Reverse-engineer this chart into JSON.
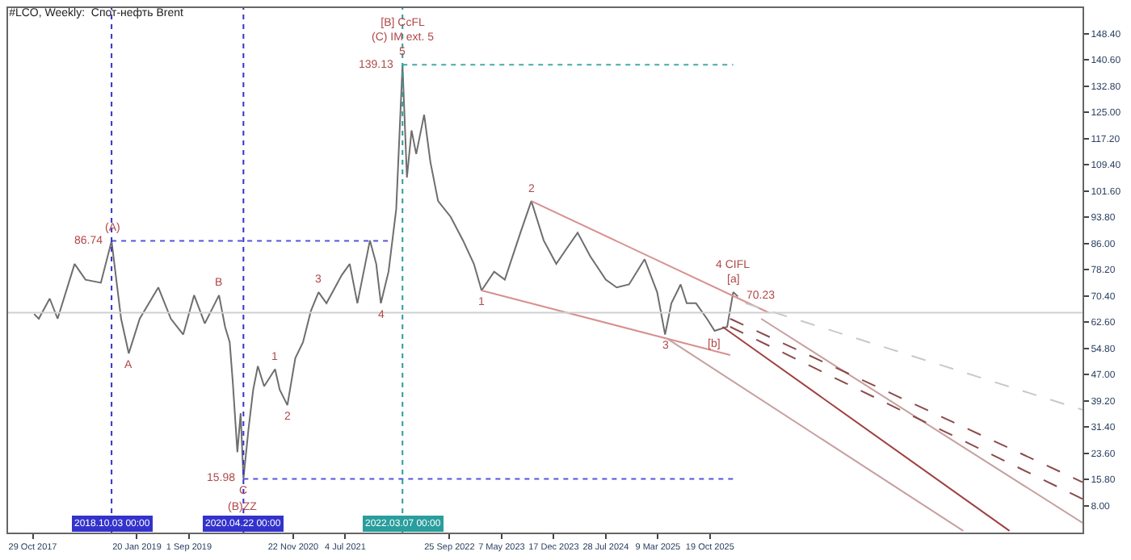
{
  "chart_data": {
    "type": "line",
    "title": "#LCO, Weekly:  Спот-нефть Brent",
    "xlim": [
      "2017-07-15",
      "2030-03-09"
    ],
    "ylim": [
      0,
      156
    ],
    "xticks": [
      {
        "value": "2017-10-29",
        "label": "29 Oct 2017"
      },
      {
        "value": "2019-01-20",
        "label": "20 Jan 2019"
      },
      {
        "value": "2019-09-01",
        "label": "1 Sep 2019"
      },
      {
        "value": "2020-11-22",
        "label": "22 Nov 2020"
      },
      {
        "value": "2021-07-04",
        "label": "4 Jul 2021"
      },
      {
        "value": "2022-09-25",
        "label": "25 Sep 2022"
      },
      {
        "value": "2023-05-07",
        "label": "7 May 2023"
      },
      {
        "value": "2023-12-17",
        "label": "17 Dec 2023"
      },
      {
        "value": "2024-07-28",
        "label": "28 Jul 2024"
      },
      {
        "value": "2025-03-09",
        "label": "9 Mar 2025"
      },
      {
        "value": "2025-10-19",
        "label": "19 Oct 2025"
      }
    ],
    "yticks": [
      {
        "value": 8,
        "label": "8.00"
      },
      {
        "value": 15.8,
        "label": "15.80"
      },
      {
        "value": 23.6,
        "label": "23.60"
      },
      {
        "value": 31.4,
        "label": "31.40"
      },
      {
        "value": 39.2,
        "label": "39.20"
      },
      {
        "value": 47,
        "label": "47.00"
      },
      {
        "value": 54.8,
        "label": "54.80"
      },
      {
        "value": 62.6,
        "label": "62.60"
      },
      {
        "value": 70.4,
        "label": "70.40"
      },
      {
        "value": 78.2,
        "label": "78.20"
      },
      {
        "value": 86,
        "label": "86.00"
      },
      {
        "value": 93.8,
        "label": "93.80"
      },
      {
        "value": 101.6,
        "label": "101.60"
      },
      {
        "value": 109.4,
        "label": "109.40"
      },
      {
        "value": 117.2,
        "label": "117.20"
      },
      {
        "value": 125,
        "label": "125.00"
      },
      {
        "value": 132.8,
        "label": "132.80"
      },
      {
        "value": 140.6,
        "label": "140.60"
      },
      {
        "value": 148.4,
        "label": "148.40"
      }
    ],
    "marker": "none",
    "series": [
      {
        "color": "#6e6e6e",
        "line_style": "solid",
        "x": [
          "2017-11-04",
          "2017-11-24",
          "2018-01-10",
          "2018-02-13",
          "2018-04-27",
          "2018-06-13",
          "2018-08-18",
          "2018-10-03",
          "2018-11-13",
          "2018-12-16",
          "2019-02-01",
          "2019-04-22",
          "2019-06-15",
          "2019-08-07",
          "2019-09-23",
          "2019-11-08",
          "2020-01-08",
          "2020-02-03",
          "2020-02-23",
          "2020-03-07",
          "2020-03-27",
          "2020-04-10",
          "2020-04-22",
          "2020-05-14",
          "2020-06-03",
          "2020-06-23",
          "2020-07-20",
          "2020-09-05",
          "2020-09-25",
          "2020-10-28",
          "2020-12-01",
          "2021-01-03",
          "2021-02-06",
          "2021-03-11",
          "2021-04-14",
          "2021-06-19",
          "2021-07-23",
          "2021-08-25",
          "2021-10-18",
          "2021-11-14",
          "2021-12-04",
          "2022-01-06",
          "2022-02-08",
          "2022-03-07",
          "2022-03-26",
          "2022-04-15",
          "2022-05-05",
          "2022-06-08",
          "2022-07-05",
          "2022-08-07",
          "2022-09-30",
          "2022-11-22",
          "2023-01-08",
          "2023-02-10",
          "2023-04-05",
          "2023-05-21",
          "2023-07-27",
          "2023-09-12",
          "2023-11-04",
          "2023-12-28",
          "2024-02-12",
          "2024-03-29",
          "2024-05-22",
          "2024-07-28",
          "2024-09-13",
          "2024-11-05",
          "2025-01-11",
          "2025-03-06",
          "2025-04-09",
          "2025-05-06",
          "2025-06-15",
          "2025-07-11",
          "2025-08-20",
          "2025-10-06",
          "2025-11-08",
          "2026-01-01",
          "2026-01-27",
          "2026-02-16"
        ],
        "values": [
          65.0,
          63.6,
          69.6,
          63.6,
          79.9,
          75.2,
          74.3,
          86.7,
          63.6,
          53.3,
          63.6,
          72.9,
          63.6,
          58.9,
          70.6,
          62.2,
          70.6,
          61.2,
          56.6,
          44.9,
          23.9,
          35.5,
          16.0,
          30.9,
          42.5,
          49.5,
          43.5,
          48.6,
          42.5,
          37.9,
          51.9,
          56.6,
          65.9,
          71.5,
          68.2,
          76.6,
          79.9,
          68.2,
          86.9,
          79.9,
          68.2,
          77.6,
          96.2,
          139.1,
          105.6,
          119.6,
          112.6,
          124.3,
          110.2,
          98.6,
          93.9,
          86.9,
          79.9,
          72.0,
          77.6,
          75.2,
          89.2,
          98.6,
          86.9,
          79.9,
          84.6,
          89.2,
          82.2,
          75.2,
          72.9,
          73.8,
          81.3,
          71.5,
          58.9,
          68.2,
          73.8,
          68.2,
          68.2,
          63.6,
          60.0,
          61.2,
          71.5,
          70.23
        ]
      },
      {
        "color": "#5555dd",
        "line_style": "dotted",
        "x": [
          "2018-10-03",
          "2022-01-06"
        ],
        "values": [
          86.74,
          86.74
        ]
      },
      {
        "color": "#44aaaa",
        "line_style": "dotted",
        "x": [
          "2022-03-07",
          "2026-01-27"
        ],
        "values": [
          139.13,
          139.13
        ]
      },
      {
        "color": "#5555dd",
        "line_style": "dotted",
        "x": [
          "2020-04-22",
          "2026-01-27"
        ],
        "values": [
          15.98,
          15.98
        ]
      },
      {
        "color": "#d89090",
        "line_style": "solid",
        "x": [
          "2023-09-12",
          "2026-06-29"
        ],
        "values": [
          98.6,
          65.4
        ]
      },
      {
        "color": "#d89090",
        "line_style": "solid",
        "x": [
          "2023-02-10",
          "2026-01-14"
        ],
        "values": [
          72.0,
          52.8
        ]
      },
      {
        "color": "#c8a0a0",
        "line_style": "solid",
        "x": [
          "2026-05-27",
          "2030-03-09"
        ],
        "values": [
          63.6,
          2.9
        ]
      },
      {
        "color": "#c8a0a0",
        "line_style": "solid",
        "x": [
          "2025-04-22",
          "2028-10-12"
        ],
        "values": [
          57.5,
          0.5
        ]
      },
      {
        "color": "#a04040",
        "line_style": "solid",
        "x": [
          "2025-12-12",
          "2029-04-29"
        ],
        "values": [
          61.2,
          0.5
        ]
      },
      {
        "color": "#c8c8c8",
        "line_style": "dashed",
        "x": [
          "2026-03-20",
          "2030-03-09"
        ],
        "values": [
          68.2,
          36.5
        ]
      },
      {
        "color": "#8b4a4a",
        "line_style": "dashed",
        "x": [
          "2026-01-14",
          "2030-03-09"
        ],
        "values": [
          63.6,
          15.0
        ]
      },
      {
        "color": "#8b4a4a",
        "line_style": "dashed",
        "x": [
          "2026-01-14",
          "2030-03-09"
        ],
        "values": [
          61.2,
          10.0
        ]
      }
    ],
    "ref_lines": [
      {
        "axis": "x",
        "value": "2018-10-03",
        "label": "2018.10.03 00:00",
        "color": "#3333cc",
        "line_style": "dotted"
      },
      {
        "axis": "x",
        "value": "2020-04-22",
        "label": "2020.04.22 00:00",
        "color": "#3333cc",
        "line_style": "dotted"
      },
      {
        "axis": "x",
        "value": "2022-03-07",
        "label": "2022.03.07 00:00",
        "color": "#2a9d9d",
        "line_style": "dotted"
      },
      {
        "axis": "y",
        "value": 65.4,
        "color": "#d0d0d0",
        "line_style": "solid"
      }
    ],
    "annotations": [
      {
        "text": "(A)",
        "x": "2018-10-03",
        "y": 86.7
      },
      {
        "text": "A",
        "x": "2018-12-16",
        "y": 53.3
      },
      {
        "text": "B",
        "x": "2020-01-08",
        "y": 70.6
      },
      {
        "text": "C",
        "x": "2020-04-22",
        "y": 16.0
      },
      {
        "text": "(B)ZZ",
        "x": "2020-04-22",
        "y": 16.0
      },
      {
        "text": "1",
        "x": "2020-09-05",
        "y": 48.6
      },
      {
        "text": "2",
        "x": "2020-10-28",
        "y": 37.9
      },
      {
        "text": "3",
        "x": "2021-03-11",
        "y": 71.5
      },
      {
        "text": "4",
        "x": "2021-12-04",
        "y": 68.2
      },
      {
        "text": "5",
        "x": "2022-03-07",
        "y": 139.1
      },
      {
        "text": "[B] CcFL\n(C) IM ext. 5",
        "x": "2022-03-07",
        "y": 139.1
      },
      {
        "text": "1",
        "x": "2023-02-10",
        "y": 72.0
      },
      {
        "text": "2",
        "x": "2023-09-12",
        "y": 98.6
      },
      {
        "text": "3",
        "x": "2025-04-09",
        "y": 58.9
      },
      {
        "text": "[b]",
        "x": "2025-11-08",
        "y": 60.0
      },
      {
        "text": "[a]",
        "x": "2026-01-27",
        "y": 71.5
      },
      {
        "text": "4 CIFL",
        "x": "2026-01-27",
        "y": 71.5
      },
      {
        "text": "70.23",
        "x": "2026-02-16",
        "y": 70.23
      },
      {
        "text": "86.74",
        "x": "2018-10-03",
        "y": 86.74
      },
      {
        "text": "139.13",
        "x": "2022-03-07",
        "y": 139.13
      },
      {
        "text": "15.98",
        "x": "2020-04-22",
        "y": 15.98
      }
    ]
  }
}
